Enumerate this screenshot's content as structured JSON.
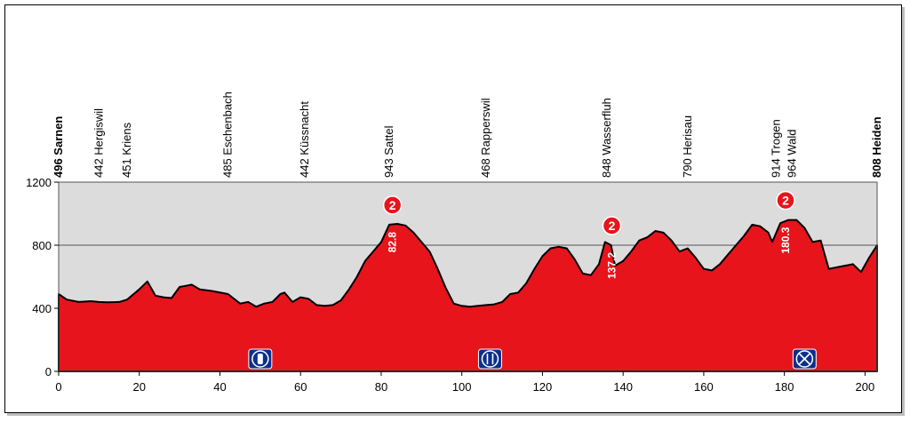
{
  "chart_data": {
    "type": "area",
    "title": "",
    "xlabel": "",
    "ylabel": "",
    "xlim": [
      0,
      203
    ],
    "ylim": [
      0,
      1200
    ],
    "x_ticks": [
      0,
      20,
      40,
      60,
      80,
      100,
      120,
      140,
      160,
      180,
      200
    ],
    "y_ticks": [
      0,
      400,
      800,
      1200
    ],
    "grid": true,
    "colors": {
      "area": "#e8141b",
      "plot_background": "#dcdcdc",
      "outline": "#000000",
      "climb_marker": "#e8141b"
    },
    "series": [
      {
        "x": [
          0,
          2,
          5,
          8,
          10,
          12,
          15,
          17,
          20,
          22,
          24,
          26,
          28,
          30,
          32,
          33,
          35,
          38,
          42,
          45,
          47,
          49,
          51,
          53,
          55,
          56,
          58,
          60,
          62,
          64,
          66,
          68,
          70,
          72,
          74,
          76,
          78,
          80,
          82,
          84,
          86,
          88,
          90,
          92,
          94,
          96,
          98,
          100,
          102,
          104,
          106,
          108,
          110,
          112,
          114,
          116,
          118,
          120,
          122,
          124,
          126,
          128,
          130,
          132,
          134,
          135.5,
          137,
          138,
          140,
          142,
          144,
          146,
          148,
          150,
          152,
          154,
          156,
          158,
          160,
          162,
          164,
          166,
          168,
          170,
          172,
          174,
          176,
          177,
          179,
          181,
          183,
          185,
          187,
          189,
          191,
          193,
          195,
          197,
          199,
          201,
          203
        ],
        "y": [
          490,
          455,
          440,
          445,
          440,
          438,
          440,
          455,
          520,
          570,
          480,
          470,
          465,
          535,
          545,
          550,
          520,
          510,
          490,
          430,
          440,
          410,
          430,
          440,
          490,
          500,
          440,
          470,
          460,
          420,
          415,
          420,
          450,
          520,
          600,
          700,
          760,
          820,
          930,
          935,
          925,
          880,
          820,
          760,
          650,
          530,
          430,
          415,
          410,
          415,
          420,
          425,
          440,
          490,
          500,
          560,
          650,
          730,
          780,
          790,
          780,
          710,
          620,
          610,
          680,
          820,
          800,
          670,
          700,
          760,
          830,
          850,
          890,
          880,
          830,
          760,
          780,
          720,
          650,
          640,
          680,
          740,
          800,
          860,
          930,
          920,
          880,
          820,
          940,
          960,
          960,
          910,
          820,
          830,
          650,
          660,
          670,
          680,
          630,
          720,
          800
        ]
      }
    ],
    "locations": [
      {
        "km": 0,
        "label": "496 Sarnen",
        "bold": true
      },
      {
        "km": 10,
        "label": "442 Hergiswil",
        "bold": false
      },
      {
        "km": 17,
        "label": "451 Kriens",
        "bold": false
      },
      {
        "km": 42,
        "label": "485 Eschenbach",
        "bold": false
      },
      {
        "km": 61,
        "label": "442 Küssnacht",
        "bold": false
      },
      {
        "km": 82,
        "label": "943 Sattel",
        "bold": false
      },
      {
        "km": 106,
        "label": "468 Rapperswil",
        "bold": false
      },
      {
        "km": 136,
        "label": "848 Wasserfluh",
        "bold": false
      },
      {
        "km": 156,
        "label": "790 Herisau",
        "bold": false
      },
      {
        "km": 178,
        "label": "914 Trogen",
        "bold": false
      },
      {
        "km": 182,
        "label": "964 Wald",
        "bold": false
      },
      {
        "km": 203,
        "label": "808 Heiden",
        "bold": true
      }
    ],
    "climbs": [
      {
        "km": 82.8,
        "category": "2",
        "label": "82.8"
      },
      {
        "km": 137.2,
        "category": "2",
        "label": "137.2"
      },
      {
        "km": 180.3,
        "category": "2",
        "label": "180.3"
      }
    ],
    "markers": [
      {
        "km": 50,
        "icon": "bottle-icon"
      },
      {
        "km": 107,
        "icon": "fork-knife-icon"
      },
      {
        "km": 185,
        "icon": "crossed-circle-icon"
      }
    ]
  }
}
